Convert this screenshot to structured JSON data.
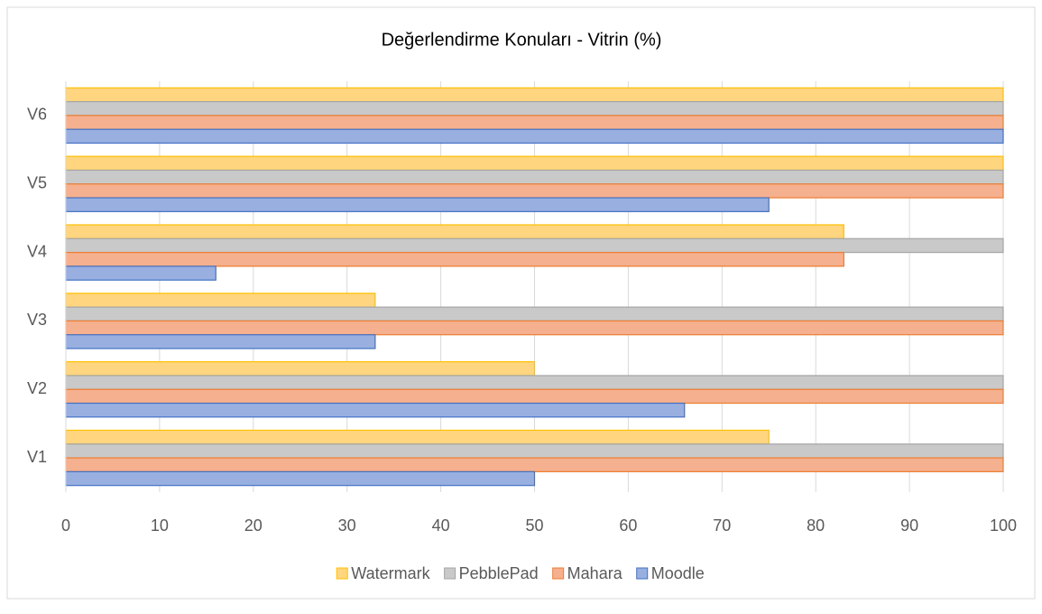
{
  "chart_data": {
    "type": "hbar",
    "title": "Değerlendirme Konuları - Vitrin (%)",
    "categories": [
      "V1",
      "V2",
      "V3",
      "V4",
      "V5",
      "V6"
    ],
    "series": [
      {
        "name": "Watermark",
        "color": "#ffd580",
        "edge": "#ffc000",
        "values": [
          75,
          50,
          33,
          83,
          100,
          100
        ]
      },
      {
        "name": "PebblePad",
        "color": "#c9c9c9",
        "edge": "#a5a5a5",
        "values": [
          100,
          100,
          100,
          100,
          100,
          100
        ]
      },
      {
        "name": "Mahara",
        "color": "#f5b08f",
        "edge": "#ed7d31",
        "values": [
          100,
          100,
          100,
          83,
          100,
          100
        ]
      },
      {
        "name": "Moodle",
        "color": "#98afe0",
        "edge": "#4472c4",
        "values": [
          50,
          66,
          33,
          16,
          75,
          100
        ]
      }
    ],
    "xlim": [
      0,
      100
    ],
    "xticks": [
      0,
      10,
      20,
      30,
      40,
      50,
      60,
      70,
      80,
      90,
      100
    ],
    "grid": true,
    "legend": "bottom"
  }
}
